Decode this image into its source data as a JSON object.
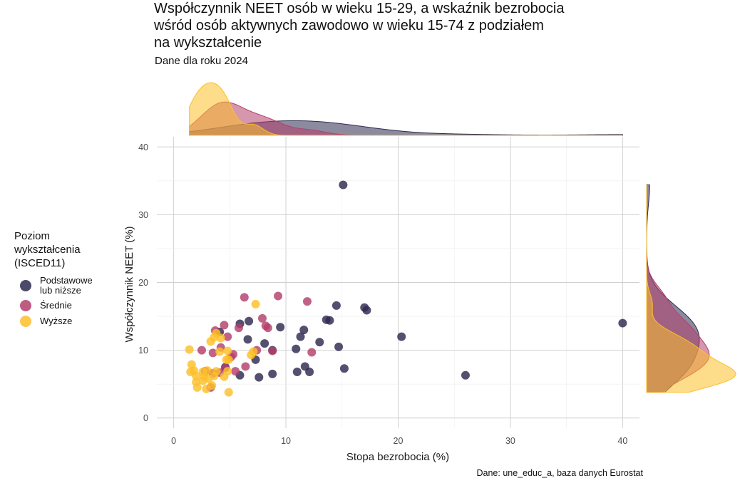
{
  "title": "Współczynnik NEET osób w wieku 15-29, a wskaźnik bezrobocia\n wśród osób aktywnych zawodowo w wieku 15-74 z podziałem\nna wykształcenie",
  "subtitle": "Dane dla roku 2024",
  "caption": "Dane: une_educ_a, baza danych Eurostat",
  "legend": {
    "title": "Poziom\nwykształcenia\n(ISCED11)",
    "items": [
      {
        "label": "Podstawowe\nlub niższe",
        "color": "#2d2a50"
      },
      {
        "label": "Średnie",
        "color": "#b3406b"
      },
      {
        "label": "Wyższe",
        "color": "#fcbf2a"
      }
    ]
  },
  "chart_data": {
    "type": "scatter",
    "title": "Współczynnik NEET osób w wieku 15-29, a wskaźnik bezrobocia wśród osób aktywnych zawodowo w wieku 15-74 z podziałem na wykształcenie",
    "subtitle": "Dane dla roku 2024",
    "xlabel": "Stopa bezrobocia (%)",
    "ylabel": "Współczynnik NEET (%)",
    "xlim": [
      -1.5,
      41.5
    ],
    "ylim": [
      -1.5,
      41.5
    ],
    "xticks": [
      0,
      10,
      20,
      30,
      40
    ],
    "yticks": [
      0,
      10,
      20,
      30,
      40
    ],
    "grid": true,
    "legend_position": "left",
    "marginal": "density",
    "series": [
      {
        "name": "Podstawowe lub niższe",
        "color": "#2d2a50",
        "points": [
          [
            15.1,
            34.4
          ],
          [
            40.0,
            14.0
          ],
          [
            26.0,
            6.3
          ],
          [
            20.3,
            12.0
          ],
          [
            17.0,
            16.3
          ],
          [
            17.2,
            15.9
          ],
          [
            14.5,
            16.6
          ],
          [
            13.6,
            14.5
          ],
          [
            13.9,
            14.4
          ],
          [
            14.7,
            10.5
          ],
          [
            15.2,
            7.3
          ],
          [
            13.0,
            11.2
          ],
          [
            11.6,
            13.0
          ],
          [
            11.3,
            12.0
          ],
          [
            10.9,
            10.2
          ],
          [
            11.0,
            6.8
          ],
          [
            11.7,
            7.6
          ],
          [
            12.1,
            6.8
          ],
          [
            9.5,
            13.4
          ],
          [
            8.8,
            10.0
          ],
          [
            8.8,
            6.5
          ],
          [
            6.7,
            14.3
          ],
          [
            6.6,
            11.6
          ],
          [
            5.9,
            13.9
          ],
          [
            5.9,
            6.3
          ],
          [
            7.3,
            8.6
          ],
          [
            7.6,
            6.0
          ],
          [
            8.1,
            11.0
          ],
          [
            4.1,
            12.7
          ],
          [
            4.6,
            7.5
          ]
        ]
      },
      {
        "name": "Średnie",
        "color": "#b3406b",
        "points": [
          [
            9.3,
            18.0
          ],
          [
            6.3,
            17.8
          ],
          [
            11.9,
            17.2
          ],
          [
            5.8,
            13.3
          ],
          [
            7.9,
            14.7
          ],
          [
            8.2,
            13.6
          ],
          [
            8.4,
            13.3
          ],
          [
            4.5,
            13.7
          ],
          [
            3.7,
            12.9
          ],
          [
            4.8,
            12.0
          ],
          [
            4.2,
            10.4
          ],
          [
            7.4,
            10.0
          ],
          [
            8.8,
            9.9
          ],
          [
            12.3,
            9.7
          ],
          [
            2.5,
            10.0
          ],
          [
            3.5,
            9.6
          ],
          [
            5.3,
            9.4
          ],
          [
            5.1,
            9.0
          ],
          [
            6.4,
            7.6
          ],
          [
            4.6,
            7.4
          ],
          [
            5.5,
            6.9
          ],
          [
            2.8,
            6.9
          ],
          [
            3.5,
            6.6
          ],
          [
            3.3,
            4.5
          ],
          [
            4.1,
            6.7
          ]
        ]
      },
      {
        "name": "Wyższe",
        "color": "#fcbf2a",
        "points": [
          [
            7.3,
            16.8
          ],
          [
            3.8,
            12.5
          ],
          [
            3.6,
            11.9
          ],
          [
            4.2,
            11.8
          ],
          [
            3.3,
            11.3
          ],
          [
            1.4,
            10.1
          ],
          [
            4.1,
            9.8
          ],
          [
            4.8,
            9.9
          ],
          [
            7.1,
            9.8
          ],
          [
            4.7,
            8.6
          ],
          [
            6.9,
            9.3
          ],
          [
            4.9,
            8.6
          ],
          [
            1.6,
            7.9
          ],
          [
            1.8,
            7.0
          ],
          [
            1.5,
            6.8
          ],
          [
            2.6,
            6.8
          ],
          [
            3.0,
            7.0
          ],
          [
            3.8,
            6.9
          ],
          [
            4.8,
            6.9
          ],
          [
            2.0,
            6.2
          ],
          [
            2.7,
            6.1
          ],
          [
            3.6,
            6.2
          ],
          [
            4.5,
            6.1
          ],
          [
            2.0,
            5.3
          ],
          [
            2.6,
            5.5
          ],
          [
            3.1,
            5.8
          ],
          [
            2.1,
            4.5
          ],
          [
            2.9,
            4.3
          ],
          [
            3.4,
            4.8
          ],
          [
            4.9,
            3.8
          ]
        ]
      }
    ]
  }
}
